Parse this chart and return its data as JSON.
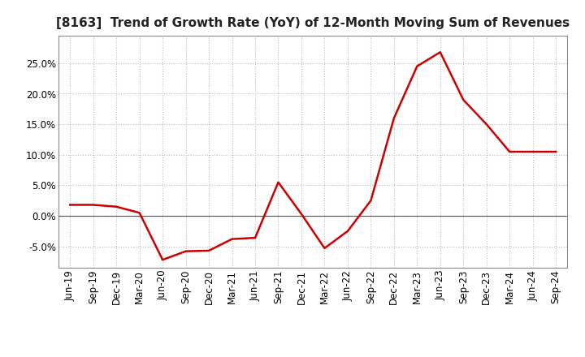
{
  "title": "[8163]  Trend of Growth Rate (YoY) of 12-Month Moving Sum of Revenues",
  "x_labels": [
    "Jun-19",
    "Sep-19",
    "Dec-19",
    "Mar-20",
    "Jun-20",
    "Sep-20",
    "Dec-20",
    "Mar-21",
    "Jun-21",
    "Sep-21",
    "Dec-21",
    "Mar-22",
    "Jun-22",
    "Sep-22",
    "Dec-22",
    "Mar-23",
    "Jun-23",
    "Sep-23",
    "Dec-23",
    "Mar-24",
    "Jun-24",
    "Sep-24"
  ],
  "y_values": [
    1.8,
    1.8,
    1.5,
    0.5,
    -7.2,
    -5.8,
    -5.7,
    -3.8,
    -3.6,
    5.5,
    0.3,
    -5.3,
    -2.5,
    2.5,
    16.0,
    24.5,
    26.8,
    19.0,
    15.0,
    10.5,
    10.5,
    10.5
  ],
  "line_color": "#cc0000",
  "line_width": 1.8,
  "grid_color": "#bbbbbb",
  "background_color": "#ffffff",
  "ylim": [
    -8.5,
    29.5
  ],
  "yticks": [
    -5.0,
    0.0,
    5.0,
    10.0,
    15.0,
    20.0,
    25.0
  ],
  "title_fontsize": 11,
  "title_color": "#222222",
  "tick_fontsize": 8.5
}
